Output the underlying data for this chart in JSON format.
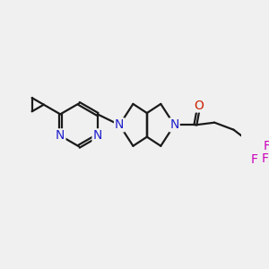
{
  "bg_color": "#f0f0f0",
  "bond_color": "#1a1a1a",
  "N_color": "#2020cc",
  "O_color": "#cc2200",
  "F_color": "#cc00bb",
  "bond_width": 1.6,
  "font_size_atom": 10,
  "fig_size": [
    3.0,
    3.0
  ],
  "xlim": [
    0,
    10
  ],
  "ylim": [
    0,
    10
  ]
}
